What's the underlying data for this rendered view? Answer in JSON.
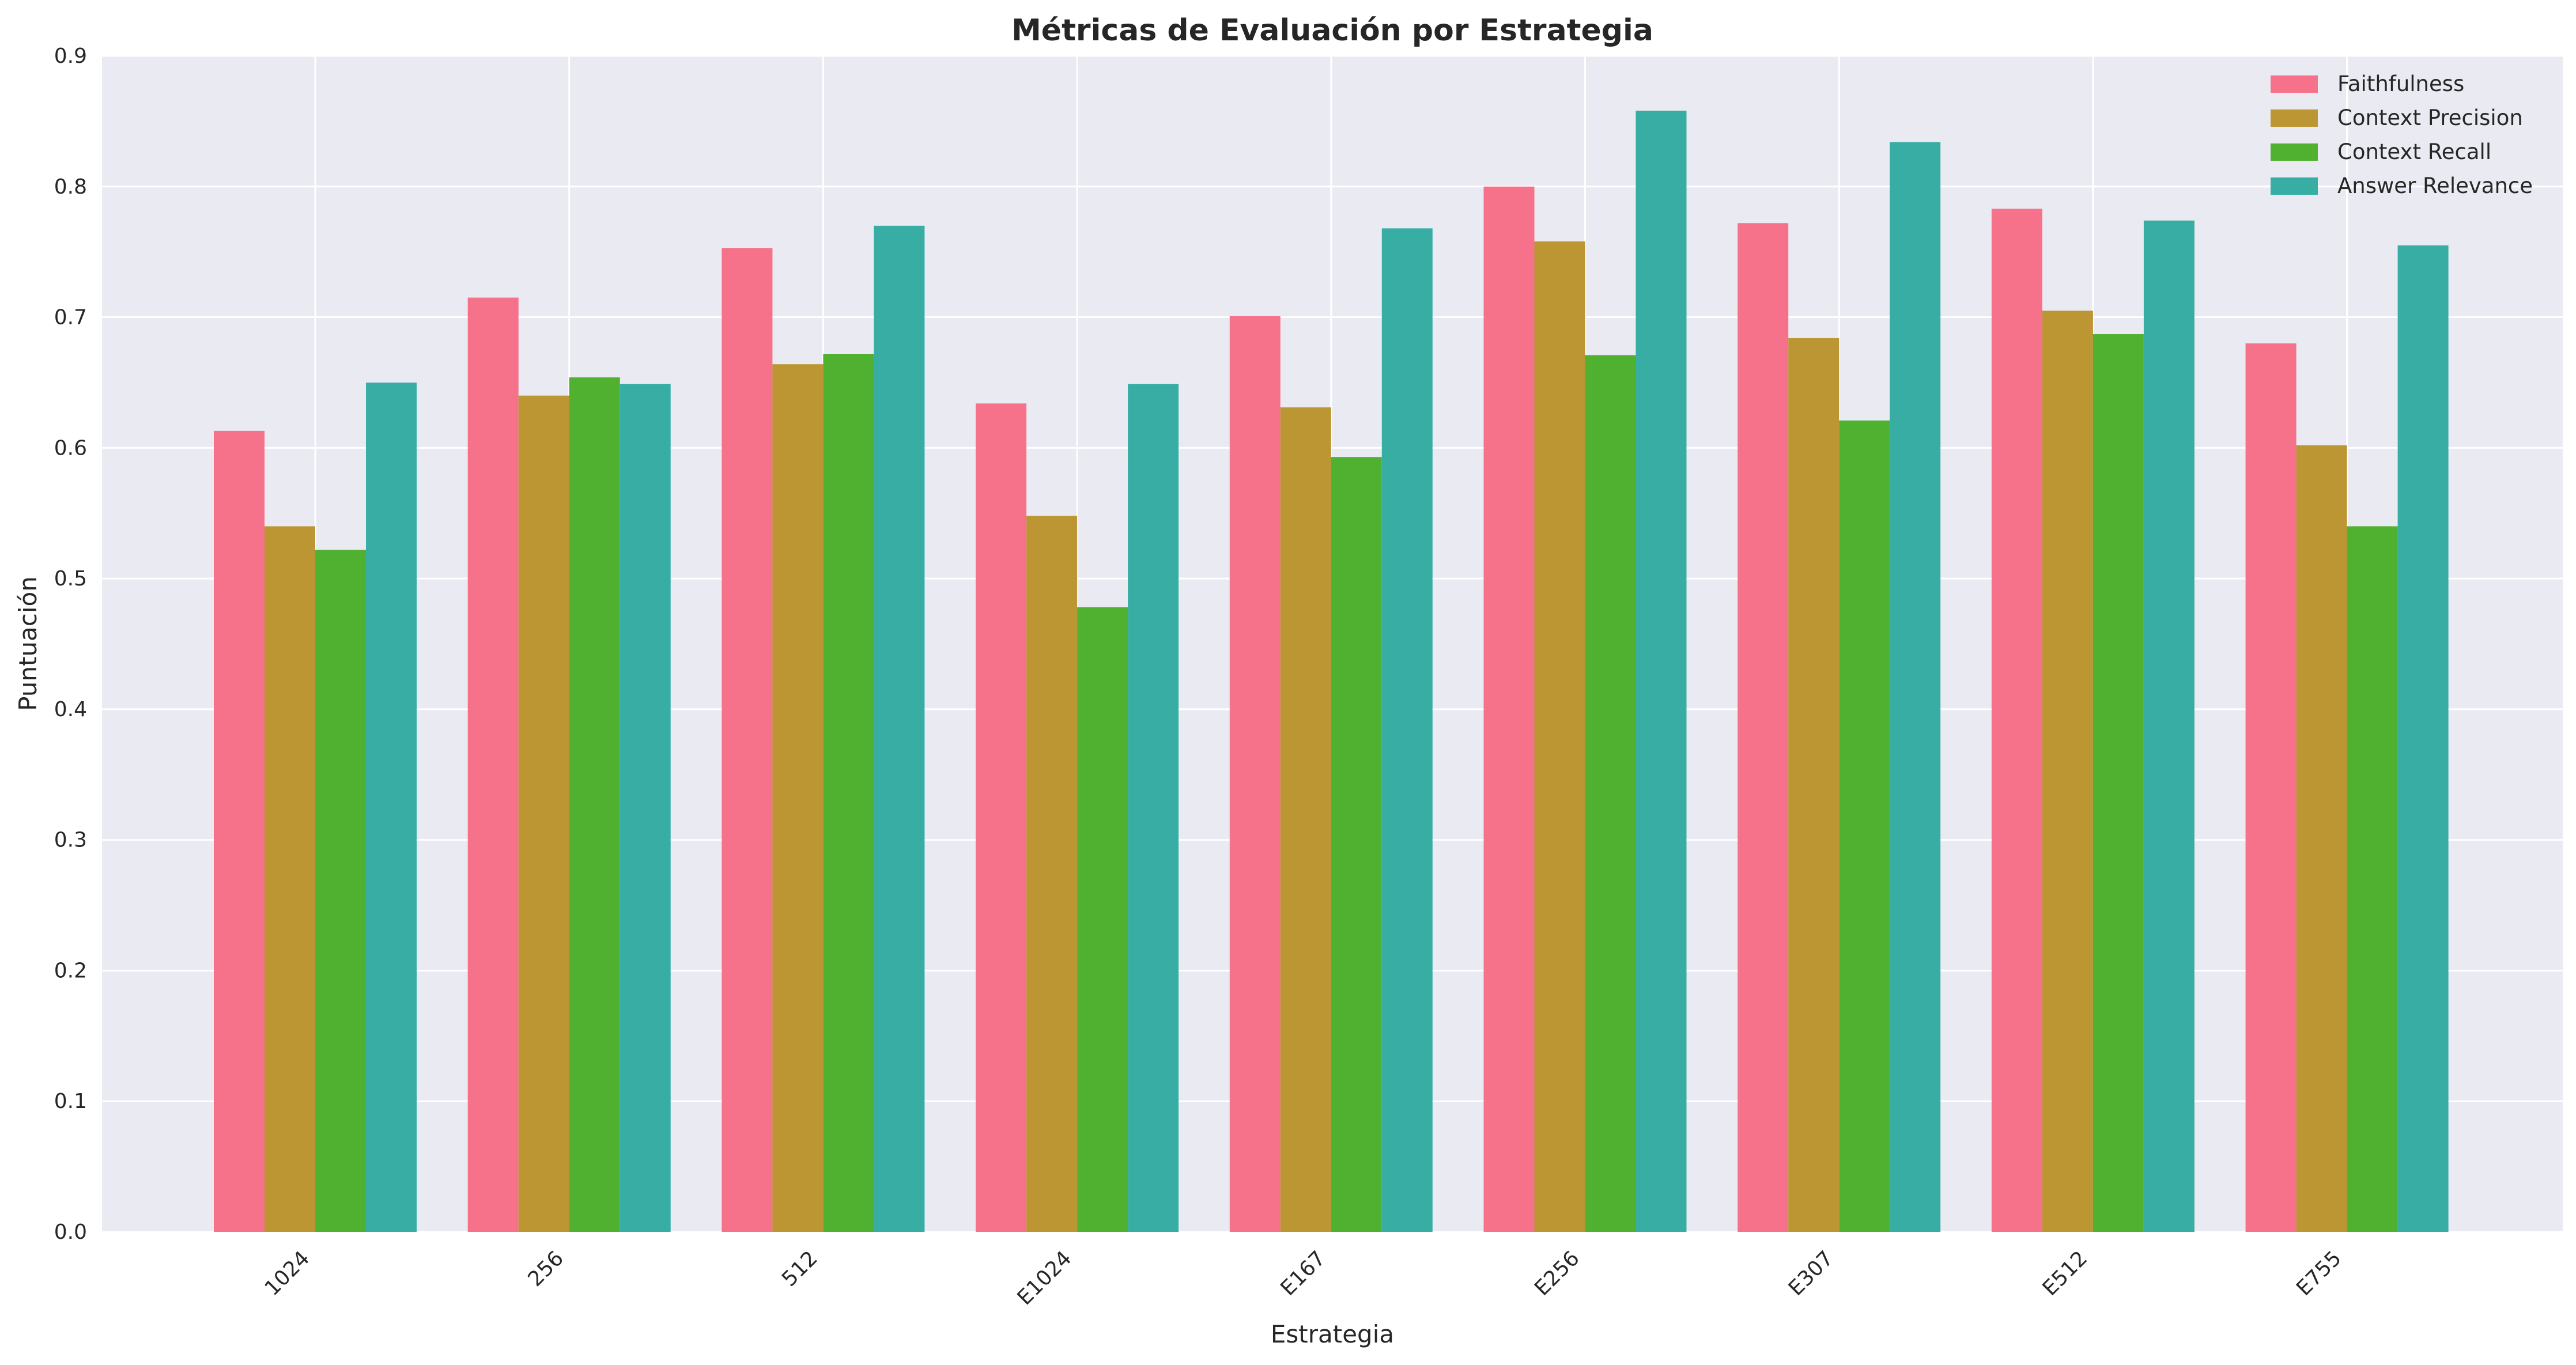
{
  "chart_data": {
    "type": "bar",
    "title": "Métricas de Evaluación por Estrategia",
    "xlabel": "Estrategia",
    "ylabel": "Puntuación",
    "ylim": [
      0,
      0.9
    ],
    "yticks": [
      "0.0",
      "0.1",
      "0.2",
      "0.3",
      "0.4",
      "0.5",
      "0.6",
      "0.7",
      "0.8",
      "0.9"
    ],
    "grid": true,
    "legend_position": "top-right",
    "categories": [
      "1024",
      "256",
      "512",
      "E1024",
      "E167",
      "E256",
      "E307",
      "E512",
      "E755"
    ],
    "series": [
      {
        "name": "Faithfulness",
        "color": "#f5728a",
        "values": [
          0.613,
          0.715,
          0.753,
          0.634,
          0.701,
          0.8,
          0.772,
          0.783,
          0.68
        ]
      },
      {
        "name": "Context Precision",
        "color": "#bb9633",
        "values": [
          0.54,
          0.64,
          0.664,
          0.548,
          0.631,
          0.758,
          0.684,
          0.705,
          0.602
        ]
      },
      {
        "name": "Context Recall",
        "color": "#50b131",
        "values": [
          0.522,
          0.654,
          0.672,
          0.478,
          0.593,
          0.671,
          0.621,
          0.687,
          0.54
        ]
      },
      {
        "name": "Answer Relevance",
        "color": "#37ada4",
        "values": [
          0.65,
          0.649,
          0.77,
          0.649,
          0.768,
          0.858,
          0.834,
          0.774,
          0.755
        ]
      }
    ]
  }
}
